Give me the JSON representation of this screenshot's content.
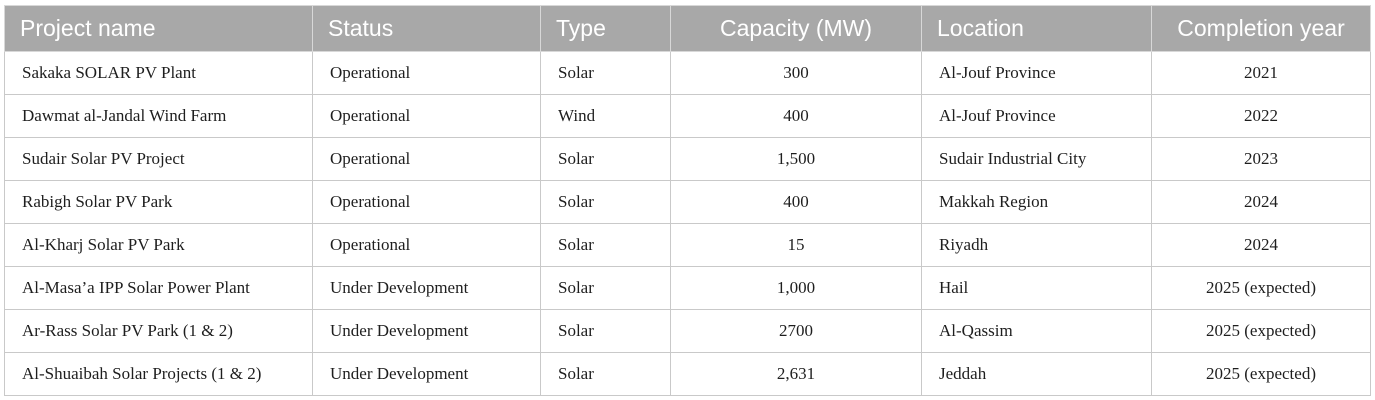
{
  "table": {
    "headers": [
      "Project name",
      "Status",
      "Type",
      "Capacity (MW)",
      "Location",
      "Completion year"
    ],
    "rows": [
      [
        "Sakaka SOLAR PV Plant",
        "Operational",
        "Solar",
        "300",
        "Al-Jouf Province",
        "2021"
      ],
      [
        "Dawmat al-Jandal Wind Farm",
        "Operational",
        "Wind",
        "400",
        "Al-Jouf Province",
        "2022"
      ],
      [
        "Sudair Solar PV Project",
        "Operational",
        "Solar",
        "1,500",
        "Sudair Industrial City",
        "2023"
      ],
      [
        "Rabigh Solar PV Park",
        "Operational",
        "Solar",
        "400",
        "Makkah Region",
        "2024"
      ],
      [
        "Al-Kharj Solar PV Park",
        "Operational",
        "Solar",
        "15",
        "Riyadh",
        "2024"
      ],
      [
        "Al-Masa’a IPP Solar Power Plant",
        "Under Development",
        "Solar",
        "1,000",
        "Hail",
        "2025 (expected)"
      ],
      [
        "Ar-Rass Solar PV Park (1 & 2)",
        "Under Development",
        "Solar",
        "2700",
        "Al-Qassim",
        "2025 (expected)"
      ],
      [
        "Al-Shuaibah Solar Projects (1 & 2)",
        "Under Development",
        "Solar",
        "2,631",
        "Jeddah",
        "2025 (expected)"
      ]
    ]
  },
  "colors": {
    "header_background": "#a8a8a8",
    "header_text": "#ffffff",
    "border": "#c9c9c9"
  }
}
